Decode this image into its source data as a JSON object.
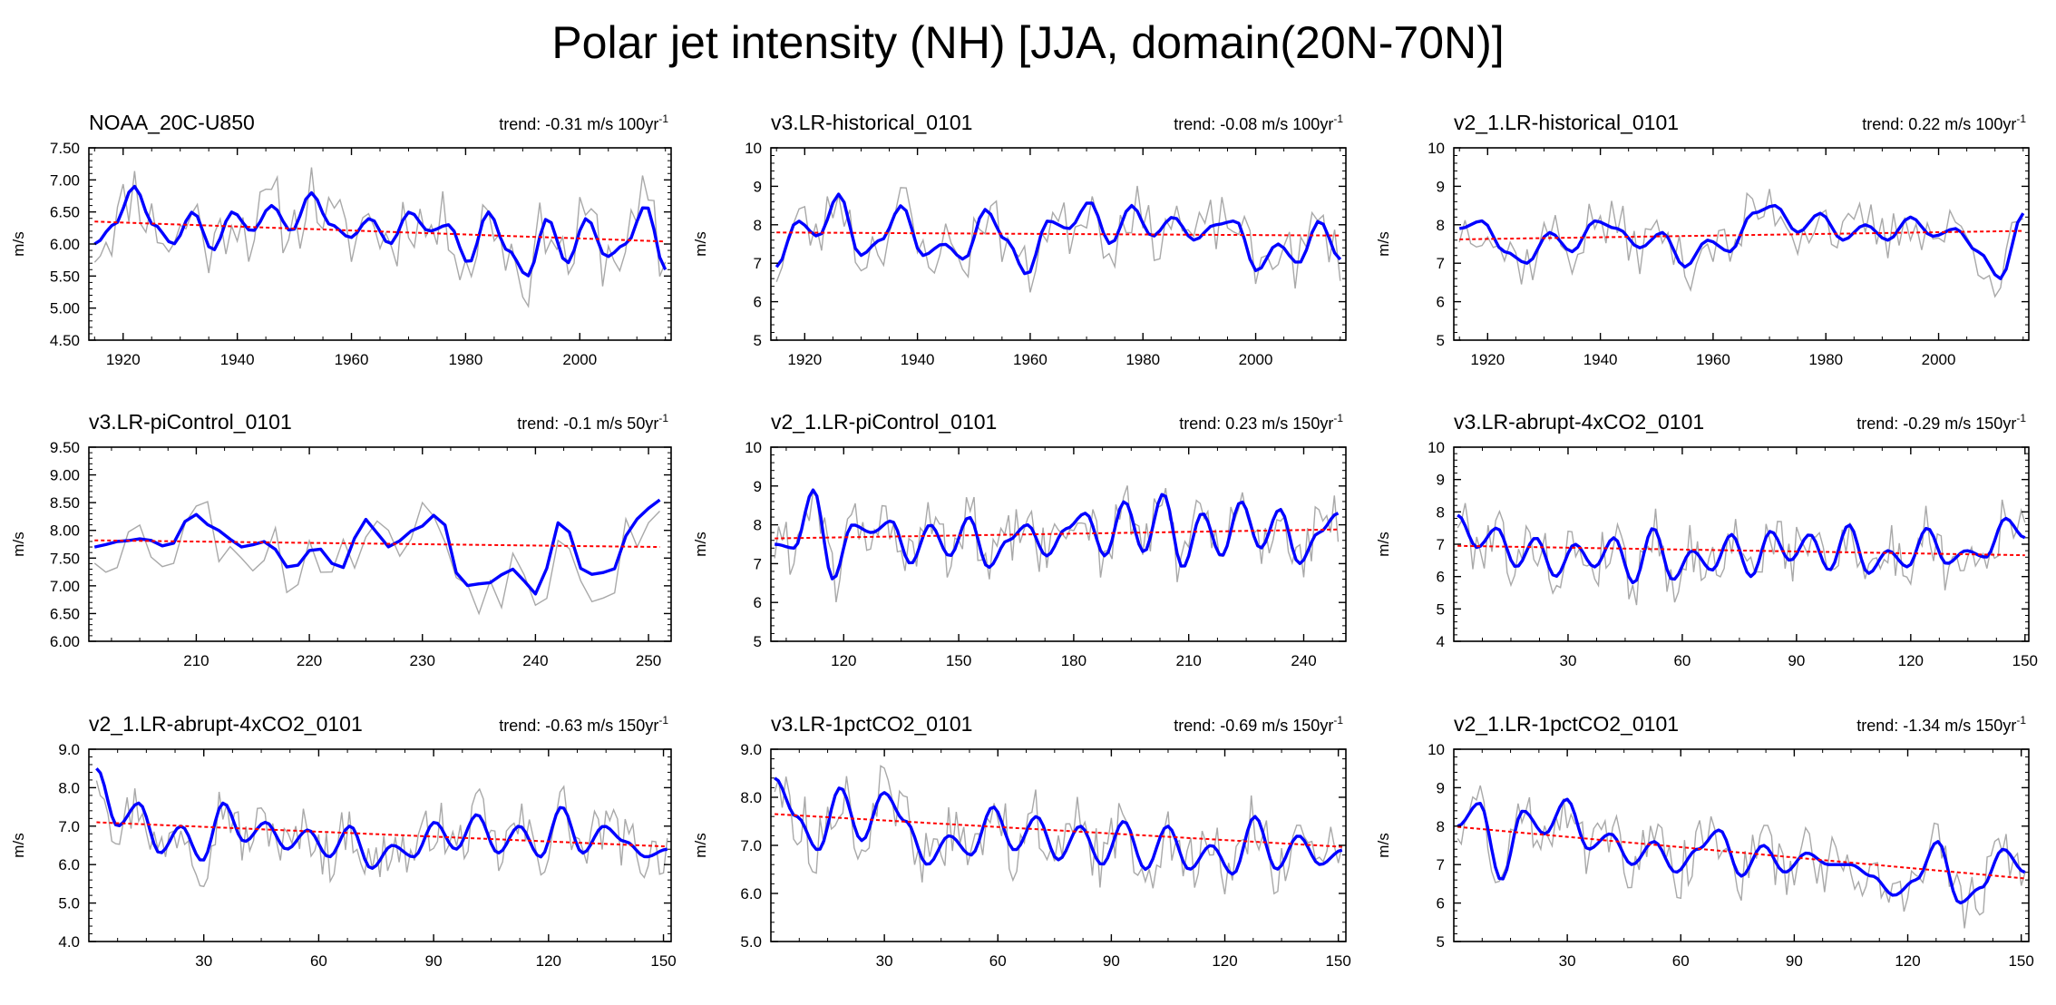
{
  "title": "Polar jet intensity (NH) [JJA, domain(20N-70N)]",
  "colors": {
    "raw": "#a9a9a9",
    "smooth": "#0000ff",
    "trend": "#ff0000"
  },
  "chart_data": [
    {
      "type": "line",
      "title": "NOAA_20C-U850",
      "trend": "trend: -0.31 m/s 100yr",
      "trend_sup": "-1",
      "ylabel": "m/s",
      "xlim": [
        1914,
        2016
      ],
      "ylim": [
        4.5,
        7.5
      ],
      "yticks": [
        "4.50",
        "5.00",
        "5.50",
        "6.00",
        "6.50",
        "7.00",
        "7.50"
      ],
      "xticks": [
        "1920",
        "1940",
        "1960",
        "1980",
        "2000"
      ],
      "xticks_values": [
        1920,
        1940,
        1960,
        1980,
        2000
      ],
      "x_start": 1915,
      "x_end": 2015,
      "trend_line": [
        6.35,
        6.04
      ],
      "smooth_keys": [
        6.0,
        6.3,
        6.9,
        6.3,
        6.0,
        6.5,
        5.9,
        6.5,
        6.2,
        6.6,
        6.2,
        6.8,
        6.3,
        6.1,
        6.4,
        6.0,
        6.5,
        6.2,
        6.3,
        5.7,
        6.5,
        5.9,
        5.5,
        6.4,
        5.7,
        6.4,
        5.8,
        6.0,
        6.6,
        5.6
      ],
      "raw_amp": 0.55,
      "seed": 11
    },
    {
      "type": "line",
      "title": "v3.LR-historical_0101",
      "trend": "trend: -0.08 m/s 100yr",
      "trend_sup": "-1",
      "ylabel": "m/s",
      "xlim": [
        1914,
        2016
      ],
      "ylim": [
        5,
        10
      ],
      "yticks": [
        "5",
        "6",
        "7",
        "8",
        "9",
        "10"
      ],
      "xticks": [
        "1920",
        "1940",
        "1960",
        "1980",
        "2000"
      ],
      "xticks_values": [
        1920,
        1940,
        1960,
        1980,
        2000
      ],
      "x_start": 1915,
      "x_end": 2015,
      "trend_line": [
        7.8,
        7.72
      ],
      "smooth_keys": [
        6.9,
        8.1,
        7.7,
        8.8,
        7.2,
        7.6,
        8.5,
        7.2,
        7.5,
        7.1,
        8.4,
        7.6,
        6.7,
        8.1,
        7.9,
        8.6,
        7.5,
        8.5,
        7.7,
        8.2,
        7.6,
        8.0,
        8.1,
        6.8,
        7.5,
        7.0,
        8.1,
        7.1
      ],
      "raw_amp": 0.75,
      "seed": 23
    },
    {
      "type": "line",
      "title": "v2_1.LR-historical_0101",
      "trend": "trend: 0.22 m/s 100yr",
      "trend_sup": "-1",
      "ylabel": "m/s",
      "xlim": [
        1914,
        2016
      ],
      "ylim": [
        5,
        10
      ],
      "yticks": [
        "5",
        "6",
        "7",
        "8",
        "9",
        "10"
      ],
      "xticks": [
        "1920",
        "1940",
        "1960",
        "1980",
        "2000"
      ],
      "xticks_values": [
        1920,
        1940,
        1960,
        1980,
        2000
      ],
      "x_start": 1915,
      "x_end": 2015,
      "trend_line": [
        7.62,
        7.84
      ],
      "smooth_keys": [
        7.9,
        8.1,
        7.3,
        7.0,
        7.8,
        7.3,
        8.1,
        7.9,
        7.4,
        7.8,
        6.9,
        7.6,
        7.3,
        8.3,
        8.5,
        7.8,
        8.3,
        7.6,
        8.0,
        7.6,
        8.2,
        7.7,
        7.9,
        7.3,
        6.6,
        8.3
      ],
      "raw_amp": 0.7,
      "seed": 37
    },
    {
      "type": "line",
      "title": "v3.LR-piControl_0101",
      "trend": "trend: -0.1 m/s 50yr",
      "trend_sup": "-1",
      "ylabel": "m/s",
      "xlim": [
        200.5,
        252
      ],
      "ylim": [
        6,
        9.5
      ],
      "yticks": [
        "6.00",
        "6.50",
        "7.00",
        "7.50",
        "8.00",
        "8.50",
        "9.00",
        "9.50"
      ],
      "xticks": [
        "210",
        "220",
        "230",
        "240",
        "250"
      ],
      "xticks_values": [
        210,
        220,
        230,
        240,
        250
      ],
      "x_start": 201,
      "x_end": 251,
      "trend_line": [
        7.82,
        7.7
      ],
      "smooth_keys": [
        7.7,
        7.8,
        7.85,
        7.7,
        8.3,
        8.0,
        7.7,
        7.8,
        7.3,
        7.7,
        7.3,
        8.2,
        7.7,
        8.0,
        8.3,
        7.0,
        7.05,
        7.3,
        6.85,
        8.2,
        7.2,
        7.25,
        8.2,
        8.55
      ],
      "raw_amp": 0.6,
      "seed": 53
    },
    {
      "type": "line",
      "title": "v2_1.LR-piControl_0101",
      "trend": "trend: 0.23 m/s 150yr",
      "trend_sup": "-1",
      "ylabel": "m/s",
      "xlim": [
        101,
        251
      ],
      "ylim": [
        5,
        10
      ],
      "yticks": [
        "5",
        "6",
        "7",
        "8",
        "9",
        "10"
      ],
      "xticks": [
        "120",
        "150",
        "180",
        "210",
        "240"
      ],
      "xticks_values": [
        120,
        150,
        180,
        210,
        240
      ],
      "x_start": 102,
      "x_end": 249,
      "trend_line": [
        7.65,
        7.88
      ],
      "smooth_keys": [
        7.5,
        7.4,
        8.9,
        6.6,
        8.0,
        7.8,
        8.1,
        7.0,
        8.0,
        7.2,
        8.2,
        6.9,
        7.6,
        8.0,
        7.2,
        7.9,
        8.3,
        7.2,
        8.6,
        7.3,
        8.8,
        6.9,
        8.3,
        7.2,
        8.6,
        7.4,
        8.4,
        7.0,
        7.8,
        8.3
      ],
      "raw_amp": 0.75,
      "seed": 61
    },
    {
      "type": "line",
      "title": "v3.LR-abrupt-4xCO2_0101",
      "trend": "trend: -0.29 m/s 150yr",
      "trend_sup": "-1",
      "ylabel": "m/s",
      "xlim": [
        0,
        151
      ],
      "ylim": [
        4,
        10
      ],
      "yticks": [
        "4",
        "5",
        "6",
        "7",
        "8",
        "9",
        "10"
      ],
      "xticks": [
        "30",
        "60",
        "90",
        "120",
        "150"
      ],
      "xticks_values": [
        30,
        60,
        90,
        120,
        150
      ],
      "x_start": 1,
      "x_end": 150,
      "trend_line": [
        6.95,
        6.66
      ],
      "smooth_keys": [
        7.9,
        6.9,
        7.5,
        6.3,
        7.2,
        6.0,
        7.0,
        6.3,
        7.2,
        5.8,
        7.5,
        5.9,
        6.8,
        6.2,
        7.3,
        6.0,
        7.4,
        6.5,
        7.3,
        6.2,
        7.6,
        6.1,
        6.8,
        6.3,
        7.5,
        6.4,
        6.8,
        6.6,
        7.8,
        7.2
      ],
      "raw_amp": 0.85,
      "seed": 79
    },
    {
      "type": "line",
      "title": "v2_1.LR-abrupt-4xCO2_0101",
      "trend": "trend: -0.63 m/s 150yr",
      "trend_sup": "-1",
      "ylabel": "m/s",
      "xlim": [
        0,
        152
      ],
      "ylim": [
        4,
        9
      ],
      "yticks": [
        "4.0",
        "5.0",
        "6.0",
        "7.0",
        "8.0",
        "9.0"
      ],
      "xticks": [
        "30",
        "60",
        "90",
        "120",
        "150"
      ],
      "xticks_values": [
        30,
        60,
        90,
        120,
        150
      ],
      "x_start": 2,
      "x_end": 151,
      "trend_line": [
        7.1,
        6.47
      ],
      "smooth_keys": [
        8.5,
        7.0,
        7.6,
        6.3,
        7.0,
        6.1,
        7.6,
        6.6,
        7.1,
        6.4,
        6.9,
        6.2,
        7.0,
        5.9,
        6.5,
        6.2,
        7.1,
        6.4,
        7.3,
        6.3,
        7.0,
        6.2,
        7.5,
        6.3,
        7.0,
        6.6,
        6.2,
        6.4
      ],
      "raw_amp": 0.7,
      "seed": 97
    },
    {
      "type": "line",
      "title": "v3.LR-1pctCO2_0101",
      "trend": "trend: -0.69 m/s 150yr",
      "trend_sup": "-1",
      "ylabel": "m/s",
      "xlim": [
        0,
        152
      ],
      "ylim": [
        5,
        9
      ],
      "yticks": [
        "5.0",
        "6.0",
        "7.0",
        "8.0",
        "9.0"
      ],
      "xticks": [
        "30",
        "60",
        "90",
        "120",
        "150"
      ],
      "xticks_values": [
        30,
        60,
        90,
        120,
        150
      ],
      "x_start": 1,
      "x_end": 151,
      "trend_line": [
        7.65,
        6.97
      ],
      "smooth_keys": [
        8.4,
        7.6,
        6.9,
        8.2,
        7.1,
        8.1,
        7.5,
        6.6,
        7.2,
        6.8,
        7.8,
        6.9,
        7.6,
        6.7,
        7.4,
        6.6,
        7.5,
        6.5,
        7.4,
        6.5,
        7.0,
        6.4,
        7.6,
        6.5,
        7.2,
        6.6,
        6.9
      ],
      "raw_amp": 0.65,
      "seed": 113
    },
    {
      "type": "line",
      "title": "v2_1.LR-1pctCO2_0101",
      "trend": "trend: -1.34 m/s 150yr",
      "trend_sup": "-1",
      "ylabel": "m/s",
      "xlim": [
        0,
        152
      ],
      "ylim": [
        5,
        10
      ],
      "yticks": [
        "5",
        "6",
        "7",
        "8",
        "9",
        "10"
      ],
      "xticks": [
        "30",
        "60",
        "90",
        "120",
        "150"
      ],
      "xticks_values": [
        30,
        60,
        90,
        120,
        150
      ],
      "x_start": 1,
      "x_end": 151,
      "trend_line": [
        7.98,
        6.64
      ],
      "smooth_keys": [
        8.0,
        8.6,
        6.6,
        8.4,
        7.8,
        8.7,
        7.4,
        7.8,
        7.0,
        7.6,
        6.8,
        7.4,
        7.9,
        6.7,
        7.5,
        6.8,
        7.3,
        7.0,
        7.0,
        6.7,
        6.2,
        6.6,
        7.6,
        6.0,
        6.4,
        7.4,
        6.8
      ],
      "raw_amp": 0.75,
      "seed": 131
    }
  ]
}
